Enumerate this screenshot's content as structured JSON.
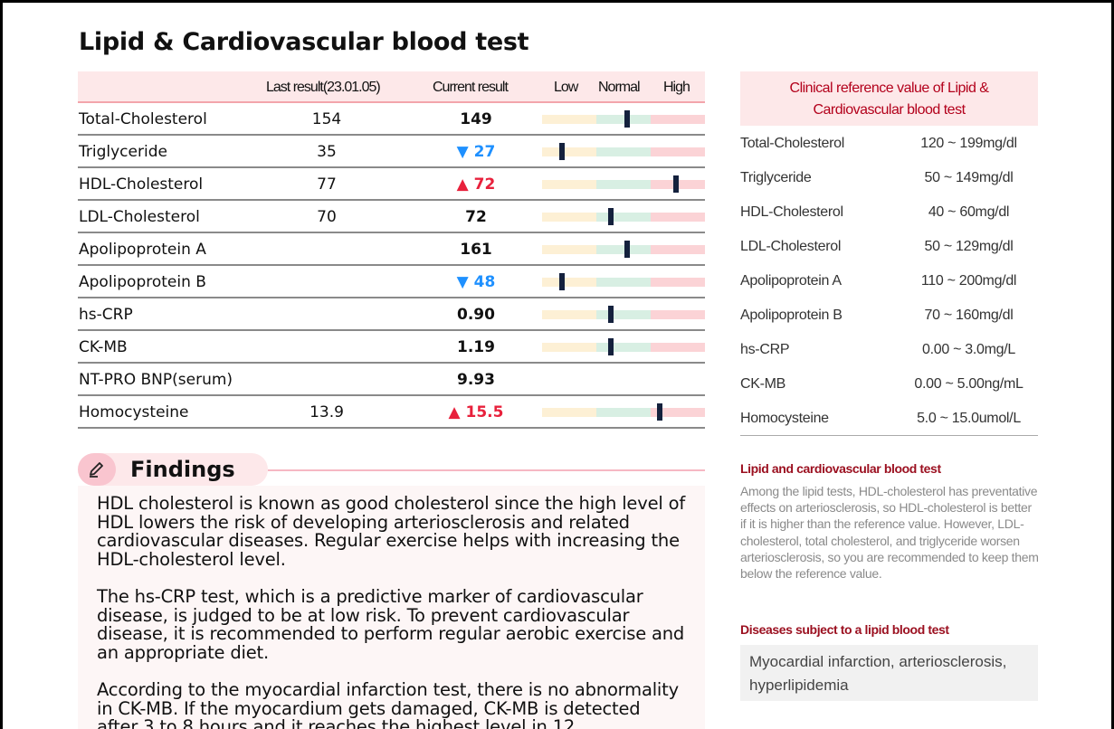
{
  "title": "Lipid & Cardiovascular blood test",
  "table": {
    "headers": {
      "last": "Last result(23.01.05)",
      "current": "Current result",
      "low": "Low",
      "normal": "Normal",
      "high": "High"
    },
    "rows": [
      {
        "name": "Total-Cholesterol",
        "last": "154",
        "current": "149",
        "flag": "",
        "arrow": "",
        "gauge": 0.52
      },
      {
        "name": "Triglyceride",
        "last": "35",
        "current": "27",
        "flag": "low",
        "arrow": "▼",
        "gauge": 0.12
      },
      {
        "name": "HDL-Cholesterol",
        "last": "77",
        "current": "72",
        "flag": "high",
        "arrow": "▲",
        "gauge": 0.82
      },
      {
        "name": "LDL-Cholesterol",
        "last": "70",
        "current": "72",
        "flag": "",
        "arrow": "",
        "gauge": 0.42
      },
      {
        "name": "Apolipoprotein A",
        "last": "",
        "current": "161",
        "flag": "",
        "arrow": "",
        "gauge": 0.52
      },
      {
        "name": "Apolipoprotein B",
        "last": "",
        "current": "48",
        "flag": "low",
        "arrow": "▼",
        "gauge": 0.12
      },
      {
        "name": "hs-CRP",
        "last": "",
        "current": "0.90",
        "flag": "",
        "arrow": "",
        "gauge": 0.42
      },
      {
        "name": "CK-MB",
        "last": "",
        "current": "1.19",
        "flag": "",
        "arrow": "",
        "gauge": 0.42
      },
      {
        "name": "NT-PRO BNP(serum)",
        "last": "",
        "current": "9.93",
        "flag": "",
        "arrow": "",
        "gauge": null
      },
      {
        "name": "Homocysteine",
        "last": "13.9",
        "current": "15.5",
        "flag": "high",
        "arrow": "▲",
        "gauge": 0.72
      }
    ]
  },
  "reference": {
    "title_line1": "Clinical reference value of Lipid &",
    "title_line2": "Cardiovascular blood test",
    "rows": [
      {
        "name": "Total-Cholesterol",
        "value": "120 ~ 199mg/dl"
      },
      {
        "name": "Triglyceride",
        "value": "50 ~ 149mg/dl"
      },
      {
        "name": "HDL-Cholesterol",
        "value": "40 ~ 60mg/dl"
      },
      {
        "name": "LDL-Cholesterol",
        "value": "50 ~ 129mg/dl"
      },
      {
        "name": "Apolipoprotein A",
        "value": "110 ~ 200mg/dl"
      },
      {
        "name": "Apolipoprotein B",
        "value": "70 ~ 160mg/dl"
      },
      {
        "name": "hs-CRP",
        "value": "0.00 ~ 3.0mg/L"
      },
      {
        "name": "CK-MB",
        "value": "0.00 ~ 5.00ng/mL"
      },
      {
        "name": "Homocysteine",
        "value": "5.0 ~ 15.0umol/L"
      }
    ]
  },
  "info": {
    "lipid_title": "Lipid and cardiovascular blood test",
    "lipid_text": "Among the lipid tests, HDL-cholesterol has preventative effects on arteriosclerosis, so HDL-cholesterol is better if it is higher than the reference value. However, LDL-cholesterol, total cholesterol, and triglyceride worsen arteriosclerosis, so you are recommended to keep them below the reference value.",
    "diseases_title": "Diseases subject to a lipid blood test",
    "diseases_text": "Myocardial infarction, arteriosclerosis, hyperlipidemia"
  },
  "findings": {
    "title": "Findings",
    "paragraphs": [
      "HDL cholesterol is known as good cholesterol since the high level of HDL lowers the risk of developing arteriosclerosis and related cardiovascular diseases. Regular exercise helps with increasing the HDL-cholesterol level.",
      "The hs-CRP test, which is a predictive marker of cardiovascular disease, is judged to be at low risk. To prevent cardiovascular disease, it is recommended to perform regular aerobic exercise and an appropriate diet.",
      "According to the myocardial infarction test, there is no abnormality in CK-MB. If the myocardium gets damaged, CK-MB is detected after 3 to 8 hours and it reaches the highest level in 12"
    ]
  },
  "colors": {
    "low": "#1e90ff",
    "high": "#e8213c",
    "accent": "#b3001b"
  }
}
